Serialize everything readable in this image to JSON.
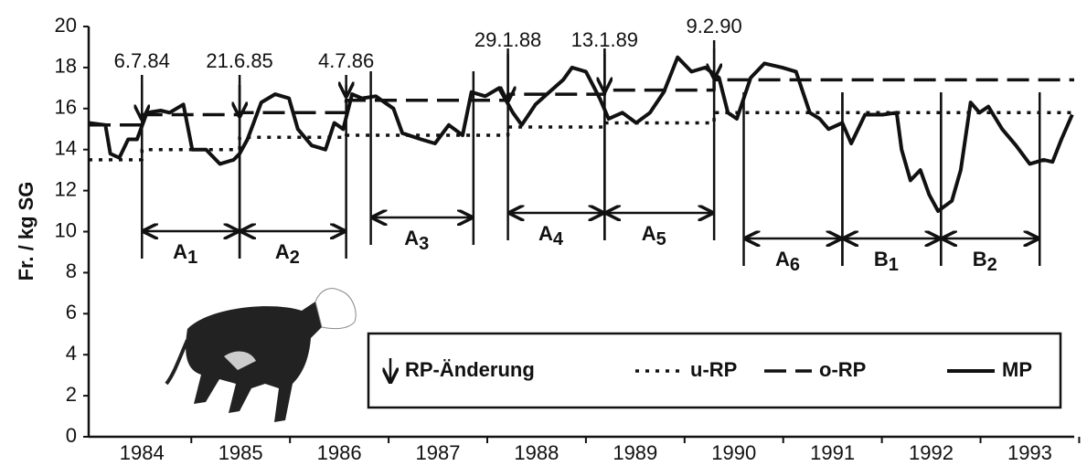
{
  "chart_data": {
    "type": "line",
    "y_label": "Fr. / kg SG",
    "xlim": [
      1983.96,
      1993.95
    ],
    "xticks": [
      {
        "value": 1984.5,
        "label": "1984"
      },
      {
        "value": 1985.5,
        "label": "1985"
      },
      {
        "value": 1986.5,
        "label": "1986"
      },
      {
        "value": 1987.5,
        "label": "1987"
      },
      {
        "value": 1988.5,
        "label": "1988"
      },
      {
        "value": 1989.5,
        "label": "1989"
      },
      {
        "value": 1990.5,
        "label": "1990"
      },
      {
        "value": 1991.5,
        "label": "1991"
      },
      {
        "value": 1992.5,
        "label": "1992"
      },
      {
        "value": 1993.5,
        "label": "1993"
      }
    ],
    "ylim": [
      0,
      20
    ],
    "yticks": [
      0,
      2,
      4,
      6,
      8,
      10,
      12,
      14,
      16,
      18,
      20
    ],
    "series": [
      {
        "name": "u-RP",
        "style": "dotted",
        "color": "#111111",
        "x": [
          1983.96,
          1984.5,
          1984.5,
          1985.49,
          1985.49,
          1986.57,
          1986.57,
          1988.21,
          1988.21,
          1989.19,
          1989.19,
          1990.3,
          1990.3,
          1993.95
        ],
        "values": [
          13.5,
          13.5,
          14.0,
          14.0,
          14.6,
          14.6,
          14.7,
          14.7,
          15.1,
          15.1,
          15.3,
          15.3,
          15.8,
          15.8
        ]
      },
      {
        "name": "o-RP",
        "style": "dashed",
        "color": "#111111",
        "x": [
          1983.96,
          1984.5,
          1984.5,
          1985.49,
          1985.49,
          1986.57,
          1986.57,
          1988.21,
          1988.21,
          1989.19,
          1989.19,
          1990.3,
          1990.3,
          1993.95
        ],
        "values": [
          15.2,
          15.2,
          15.7,
          15.7,
          15.8,
          15.8,
          16.4,
          16.4,
          16.7,
          16.7,
          16.9,
          16.9,
          17.4,
          17.4
        ]
      },
      {
        "name": "MP",
        "style": "solid",
        "color": "#111111",
        "x": [
          1983.96,
          1984.13,
          1984.18,
          1984.27,
          1984.36,
          1984.45,
          1984.55,
          1984.69,
          1984.78,
          1984.92,
          1985.01,
          1985.15,
          1985.29,
          1985.43,
          1985.49,
          1985.57,
          1985.71,
          1985.85,
          1985.99,
          1986.08,
          1986.22,
          1986.36,
          1986.45,
          1986.54,
          1986.63,
          1986.73,
          1986.87,
          1987.05,
          1987.14,
          1987.33,
          1987.47,
          1987.61,
          1987.75,
          1987.84,
          1987.98,
          1988.12,
          1988.26,
          1988.35,
          1988.49,
          1988.63,
          1988.77,
          1988.86,
          1989.0,
          1989.14,
          1989.23,
          1989.37,
          1989.51,
          1989.65,
          1989.79,
          1989.93,
          1990.07,
          1990.21,
          1990.35,
          1990.44,
          1990.53,
          1990.67,
          1990.81,
          1990.99,
          1991.13,
          1991.27,
          1991.37,
          1991.46,
          1991.6,
          1991.69,
          1991.83,
          1992.01,
          1992.15,
          1992.2,
          1992.29,
          1992.39,
          1992.48,
          1992.57,
          1992.71,
          1992.8,
          1992.9,
          1992.99,
          1993.08,
          1993.22,
          1993.36,
          1993.5,
          1993.64,
          1993.73,
          1993.82,
          1993.93
        ],
        "values": [
          15.3,
          15.2,
          13.8,
          13.6,
          14.5,
          14.5,
          15.8,
          15.9,
          15.8,
          16.2,
          14.0,
          14.0,
          13.3,
          13.5,
          13.8,
          14.5,
          16.3,
          16.7,
          16.5,
          15.0,
          14.2,
          14.0,
          15.3,
          15.0,
          16.7,
          16.5,
          16.6,
          16.0,
          14.8,
          14.5,
          14.3,
          15.2,
          14.7,
          16.8,
          16.6,
          17.0,
          15.8,
          15.2,
          16.2,
          16.8,
          17.4,
          18.0,
          17.8,
          16.5,
          15.5,
          15.8,
          15.3,
          15.8,
          16.8,
          18.5,
          17.8,
          18.0,
          17.5,
          15.8,
          15.5,
          17.5,
          18.2,
          18.0,
          17.8,
          15.8,
          15.5,
          15.0,
          15.3,
          14.3,
          15.7,
          15.7,
          15.8,
          14.0,
          12.5,
          13.0,
          11.8,
          11.0,
          11.5,
          13.0,
          16.3,
          15.8,
          16.1,
          15.0,
          14.2,
          13.3,
          13.5,
          13.4,
          14.5,
          15.7
        ]
      }
    ],
    "arrow_legend": "RP-Änderung",
    "annotations": [
      {
        "label": "6.7.84",
        "x": 1984.5
      },
      {
        "label": "21.6.85",
        "x": 1985.49
      },
      {
        "label": "4.7.86",
        "x": 1986.57
      },
      {
        "label": "29.1.88",
        "x": 1988.21
      },
      {
        "label": "13.1.89",
        "x": 1989.19
      },
      {
        "label": "9.2.90",
        "x": 1990.3
      }
    ],
    "periods": [
      {
        "label": "A",
        "sub": "1",
        "start": 1984.5,
        "end": 1985.49
      },
      {
        "label": "A",
        "sub": "2",
        "start": 1985.49,
        "end": 1986.57
      },
      {
        "label": "A",
        "sub": "3",
        "start": 1986.82,
        "end": 1987.86
      },
      {
        "label": "A",
        "sub": "4",
        "start": 1988.21,
        "end": 1989.19
      },
      {
        "label": "A",
        "sub": "5",
        "start": 1989.19,
        "end": 1990.3
      },
      {
        "label": "A",
        "sub": "6",
        "start": 1990.6,
        "end": 1991.6
      },
      {
        "label": "B",
        "sub": "1",
        "start": 1991.6,
        "end": 1992.6
      },
      {
        "label": "B",
        "sub": "2",
        "start": 1992.6,
        "end": 1993.6
      }
    ]
  }
}
